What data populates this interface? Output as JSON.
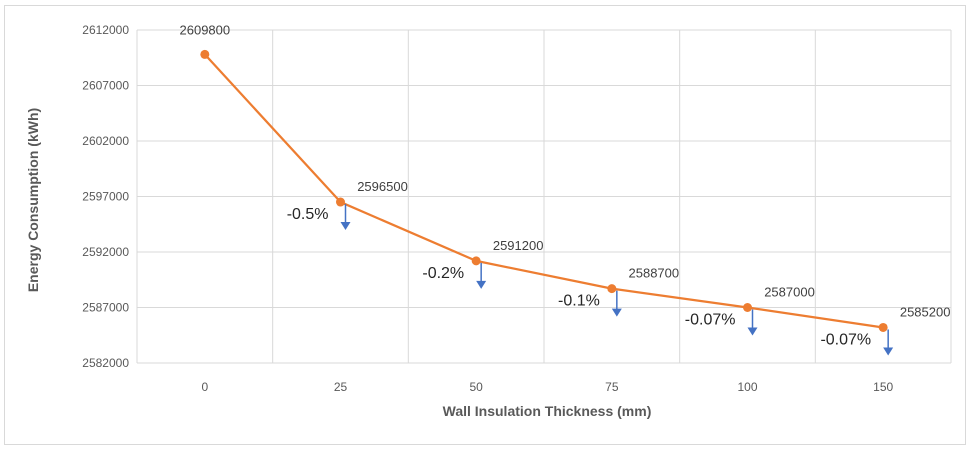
{
  "chart_data": {
    "type": "line",
    "title": "",
    "xlabel": "Wall Insulation Thickness (mm)",
    "ylabel": "Energy Consumption (kWh)",
    "categories": [
      "0",
      "25",
      "50",
      "75",
      "100",
      "150"
    ],
    "series": [
      {
        "values": [
          2609800,
          2596500,
          2591200,
          2588700,
          2587000,
          2585200
        ],
        "color": "#ed7d31"
      }
    ],
    "ylim": [
      2582000,
      2612000
    ],
    "yticks": [
      2582000,
      2587000,
      2592000,
      2597000,
      2602000,
      2607000,
      2612000
    ],
    "data_labels": [
      "2609800",
      "2596500",
      "2591200",
      "2588700",
      "2587000",
      "2585200"
    ],
    "annotations": [
      {
        "category": "25",
        "text": "-0.5%"
      },
      {
        "category": "50",
        "text": "-0.2%"
      },
      {
        "category": "75",
        "text": "-0.1%"
      },
      {
        "category": "100",
        "text": "-0.07%"
      },
      {
        "category": "150",
        "text": "-0.07%"
      }
    ],
    "annotation_arrow_color": "#4472c4",
    "grid": true,
    "legend": "none"
  }
}
